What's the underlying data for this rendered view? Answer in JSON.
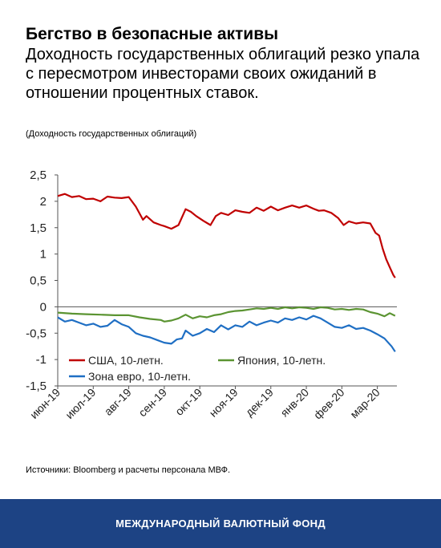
{
  "title": "Бегство в безопасные активы",
  "subtitle": "Доходность государственных облигаций резко упала с пересмотром инвесторами своих ожиданий в отношении процентных ставок.",
  "unit_note": "(Доходность государственных облигаций)",
  "source": "Источники: Bloomberg и расчеты персонала МВФ.",
  "footer": "МЕЖДУНАРОДНЫЙ ВАЛЮТНЫЙ ФОНД",
  "chart_data": {
    "type": "line",
    "title": "",
    "xlabel": "",
    "ylabel": "",
    "ylim": [
      -1.5,
      2.5
    ],
    "yticks": [
      "2,5",
      "2",
      "1,5",
      "1",
      "0,5",
      "0",
      "-0,5",
      "-1",
      "-1,5"
    ],
    "ytick_values": [
      2.5,
      2,
      1.5,
      1,
      0.5,
      0,
      -0.5,
      -1,
      -1.5
    ],
    "xticks": [
      "июн-19",
      "июл-19",
      "авг-19",
      "сен-19",
      "окт-19",
      "ноя-19",
      "дек-19",
      "янв-20",
      "фев-20",
      "мар-20"
    ],
    "x_range": [
      0,
      9.55
    ],
    "grid": false,
    "legend_position": "bottom-left",
    "series": [
      {
        "name": "США, 10-летн.",
        "color": "#c00000",
        "points": [
          [
            0,
            2.1
          ],
          [
            0.2,
            2.14
          ],
          [
            0.4,
            2.08
          ],
          [
            0.6,
            2.1
          ],
          [
            0.8,
            2.04
          ],
          [
            1.0,
            2.05
          ],
          [
            1.2,
            2.0
          ],
          [
            1.4,
            2.09
          ],
          [
            1.6,
            2.07
          ],
          [
            1.8,
            2.06
          ],
          [
            2.0,
            2.08
          ],
          [
            2.2,
            1.9
          ],
          [
            2.4,
            1.65
          ],
          [
            2.5,
            1.72
          ],
          [
            2.7,
            1.6
          ],
          [
            2.9,
            1.55
          ],
          [
            3.0,
            1.53
          ],
          [
            3.2,
            1.48
          ],
          [
            3.4,
            1.55
          ],
          [
            3.6,
            1.85
          ],
          [
            3.75,
            1.8
          ],
          [
            3.9,
            1.72
          ],
          [
            4.1,
            1.63
          ],
          [
            4.3,
            1.55
          ],
          [
            4.45,
            1.72
          ],
          [
            4.6,
            1.78
          ],
          [
            4.8,
            1.74
          ],
          [
            5.0,
            1.83
          ],
          [
            5.2,
            1.8
          ],
          [
            5.4,
            1.78
          ],
          [
            5.6,
            1.88
          ],
          [
            5.8,
            1.82
          ],
          [
            6.0,
            1.9
          ],
          [
            6.2,
            1.83
          ],
          [
            6.4,
            1.88
          ],
          [
            6.6,
            1.92
          ],
          [
            6.8,
            1.88
          ],
          [
            7.0,
            1.92
          ],
          [
            7.2,
            1.86
          ],
          [
            7.35,
            1.82
          ],
          [
            7.5,
            1.83
          ],
          [
            7.7,
            1.78
          ],
          [
            7.9,
            1.68
          ],
          [
            8.05,
            1.55
          ],
          [
            8.2,
            1.62
          ],
          [
            8.4,
            1.58
          ],
          [
            8.6,
            1.6
          ],
          [
            8.8,
            1.58
          ],
          [
            8.95,
            1.4
          ],
          [
            9.05,
            1.35
          ],
          [
            9.15,
            1.1
          ],
          [
            9.25,
            0.9
          ],
          [
            9.35,
            0.75
          ],
          [
            9.45,
            0.6
          ],
          [
            9.5,
            0.55
          ]
        ]
      },
      {
        "name": "Япония, 10-летн.",
        "color": "#5b9432",
        "points": [
          [
            0,
            -0.11
          ],
          [
            0.4,
            -0.13
          ],
          [
            0.8,
            -0.14
          ],
          [
            1.2,
            -0.15
          ],
          [
            1.6,
            -0.16
          ],
          [
            2.0,
            -0.16
          ],
          [
            2.3,
            -0.2
          ],
          [
            2.6,
            -0.23
          ],
          [
            2.9,
            -0.25
          ],
          [
            3.0,
            -0.28
          ],
          [
            3.2,
            -0.26
          ],
          [
            3.4,
            -0.22
          ],
          [
            3.6,
            -0.15
          ],
          [
            3.8,
            -0.22
          ],
          [
            4.0,
            -0.18
          ],
          [
            4.2,
            -0.2
          ],
          [
            4.4,
            -0.16
          ],
          [
            4.6,
            -0.14
          ],
          [
            4.8,
            -0.1
          ],
          [
            5.0,
            -0.08
          ],
          [
            5.2,
            -0.07
          ],
          [
            5.4,
            -0.05
          ],
          [
            5.6,
            -0.03
          ],
          [
            5.8,
            -0.04
          ],
          [
            6.0,
            -0.02
          ],
          [
            6.2,
            -0.04
          ],
          [
            6.4,
            -0.01
          ],
          [
            6.6,
            -0.03
          ],
          [
            6.8,
            -0.01
          ],
          [
            7.0,
            -0.02
          ],
          [
            7.2,
            -0.04
          ],
          [
            7.4,
            -0.01
          ],
          [
            7.6,
            -0.02
          ],
          [
            7.8,
            -0.05
          ],
          [
            8.0,
            -0.04
          ],
          [
            8.2,
            -0.06
          ],
          [
            8.4,
            -0.04
          ],
          [
            8.6,
            -0.05
          ],
          [
            8.8,
            -0.1
          ],
          [
            9.0,
            -0.13
          ],
          [
            9.2,
            -0.18
          ],
          [
            9.35,
            -0.12
          ],
          [
            9.5,
            -0.17
          ]
        ]
      },
      {
        "name": "Зона евро, 10-летн.",
        "color": "#1f6fc4",
        "points": [
          [
            0,
            -0.2
          ],
          [
            0.2,
            -0.28
          ],
          [
            0.4,
            -0.25
          ],
          [
            0.6,
            -0.3
          ],
          [
            0.8,
            -0.35
          ],
          [
            1.0,
            -0.32
          ],
          [
            1.2,
            -0.38
          ],
          [
            1.4,
            -0.36
          ],
          [
            1.6,
            -0.25
          ],
          [
            1.8,
            -0.33
          ],
          [
            2.0,
            -0.38
          ],
          [
            2.2,
            -0.5
          ],
          [
            2.4,
            -0.55
          ],
          [
            2.6,
            -0.58
          ],
          [
            2.8,
            -0.63
          ],
          [
            3.0,
            -0.68
          ],
          [
            3.2,
            -0.7
          ],
          [
            3.35,
            -0.62
          ],
          [
            3.5,
            -0.6
          ],
          [
            3.6,
            -0.45
          ],
          [
            3.8,
            -0.55
          ],
          [
            4.0,
            -0.5
          ],
          [
            4.2,
            -0.42
          ],
          [
            4.4,
            -0.48
          ],
          [
            4.6,
            -0.35
          ],
          [
            4.8,
            -0.43
          ],
          [
            5.0,
            -0.35
          ],
          [
            5.2,
            -0.38
          ],
          [
            5.4,
            -0.28
          ],
          [
            5.6,
            -0.35
          ],
          [
            5.8,
            -0.3
          ],
          [
            6.0,
            -0.26
          ],
          [
            6.2,
            -0.3
          ],
          [
            6.4,
            -0.22
          ],
          [
            6.6,
            -0.25
          ],
          [
            6.8,
            -0.2
          ],
          [
            7.0,
            -0.24
          ],
          [
            7.2,
            -0.17
          ],
          [
            7.4,
            -0.22
          ],
          [
            7.6,
            -0.3
          ],
          [
            7.8,
            -0.38
          ],
          [
            8.0,
            -0.4
          ],
          [
            8.2,
            -0.35
          ],
          [
            8.4,
            -0.42
          ],
          [
            8.6,
            -0.4
          ],
          [
            8.8,
            -0.45
          ],
          [
            9.0,
            -0.52
          ],
          [
            9.2,
            -0.6
          ],
          [
            9.4,
            -0.75
          ],
          [
            9.5,
            -0.85
          ]
        ]
      }
    ]
  }
}
